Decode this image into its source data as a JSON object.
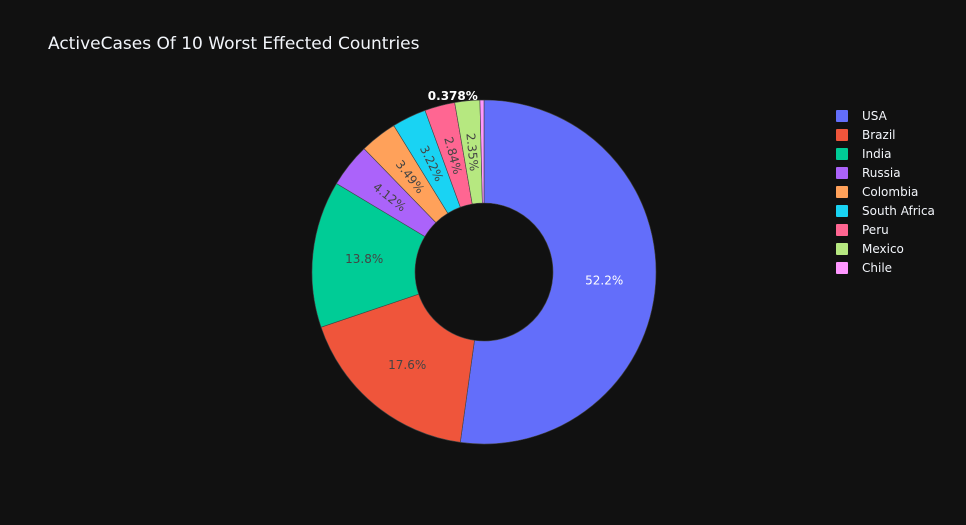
{
  "chart_data": {
    "type": "pie",
    "hole": true,
    "title": "ActiveCases Of 10 Worst Effected Countries",
    "legend_position": "right",
    "slices": [
      {
        "label": "USA",
        "percent": 52.2,
        "percent_label": "52.2%",
        "color": "#636efa",
        "text_color": "#ffffff"
      },
      {
        "label": "Brazil",
        "percent": 17.6,
        "percent_label": "17.6%",
        "color": "#ef553b",
        "text_color": "#444444"
      },
      {
        "label": "India",
        "percent": 13.8,
        "percent_label": "13.8%",
        "color": "#00cc96",
        "text_color": "#444444"
      },
      {
        "label": "Russia",
        "percent": 4.12,
        "percent_label": "4.12%",
        "color": "#ab63fa",
        "text_color": "#444444"
      },
      {
        "label": "Colombia",
        "percent": 3.49,
        "percent_label": "3.49%",
        "color": "#ffa15a",
        "text_color": "#444444"
      },
      {
        "label": "South Africa",
        "percent": 3.22,
        "percent_label": "3.22%",
        "color": "#19d3f3",
        "text_color": "#444444"
      },
      {
        "label": "Peru",
        "percent": 2.84,
        "percent_label": "2.84%",
        "color": "#ff6692",
        "text_color": "#444444"
      },
      {
        "label": "Mexico",
        "percent": 2.35,
        "percent_label": "2.35%",
        "color": "#b6e880",
        "text_color": "#444444"
      },
      {
        "label": "Chile",
        "percent": 0.378,
        "percent_label": "0.378%",
        "color": "#ff97ff",
        "text_color": "#ffffff"
      }
    ]
  }
}
